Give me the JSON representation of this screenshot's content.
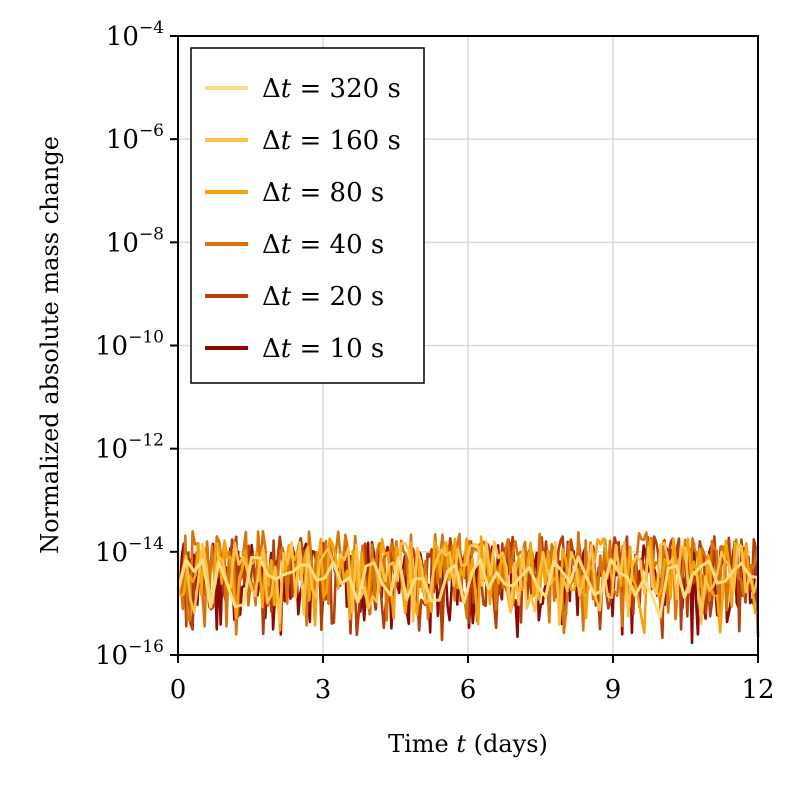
{
  "chart_data": {
    "type": "line",
    "xlabel_prefix": "Time ",
    "xlabel_var": "t",
    "xlabel_suffix": " (days)",
    "ylabel": "Normalized absolute mass change",
    "x_ticks": [
      "0",
      "3",
      "6",
      "9",
      "12"
    ],
    "y_ticks": [
      {
        "base": "10",
        "exp": "−4"
      },
      {
        "base": "10",
        "exp": "−6"
      },
      {
        "base": "10",
        "exp": "−8"
      },
      {
        "base": "10",
        "exp": "−10"
      },
      {
        "base": "10",
        "exp": "−12"
      },
      {
        "base": "10",
        "exp": "−14"
      },
      {
        "base": "10",
        "exp": "−16"
      }
    ],
    "xlim": [
      0,
      12
    ],
    "ylim_log10": [
      -16,
      -4
    ],
    "grid": true,
    "legend_position": "top-left",
    "series": [
      {
        "name": "Δt = 320 s",
        "dt_value": "320",
        "dt_unit": "s",
        "color": "#ffdd80",
        "points": 72,
        "spread": [
          -15.3,
          -14.1
        ],
        "seed": 7
      },
      {
        "name": "Δt = 160 s",
        "dt_value": "160",
        "dt_unit": "s",
        "color": "#ffc14a",
        "points": 144,
        "spread": [
          -15.5,
          -13.8
        ],
        "seed": 13
      },
      {
        "name": "Δt = 80 s",
        "dt_value": "80",
        "dt_unit": "s",
        "color": "#f5a30a",
        "points": 200,
        "spread": [
          -15.6,
          -13.7
        ],
        "seed": 21
      },
      {
        "name": "Δt = 40 s",
        "dt_value": "40",
        "dt_unit": "s",
        "color": "#d9740a",
        "points": 240,
        "spread": [
          -15.7,
          -13.6
        ],
        "seed": 34
      },
      {
        "name": "Δt = 20 s",
        "dt_value": "20",
        "dt_unit": "s",
        "color": "#b53f0a",
        "points": 280,
        "spread": [
          -15.8,
          -13.7
        ],
        "seed": 55
      },
      {
        "name": "Δt = 10 s",
        "dt_value": "10",
        "dt_unit": "s",
        "color": "#8b0a04",
        "points": 300,
        "spread": [
          -15.8,
          -13.8
        ],
        "seed": 89
      }
    ],
    "draw_order": [
      5,
      4,
      3,
      2,
      1,
      0
    ]
  }
}
